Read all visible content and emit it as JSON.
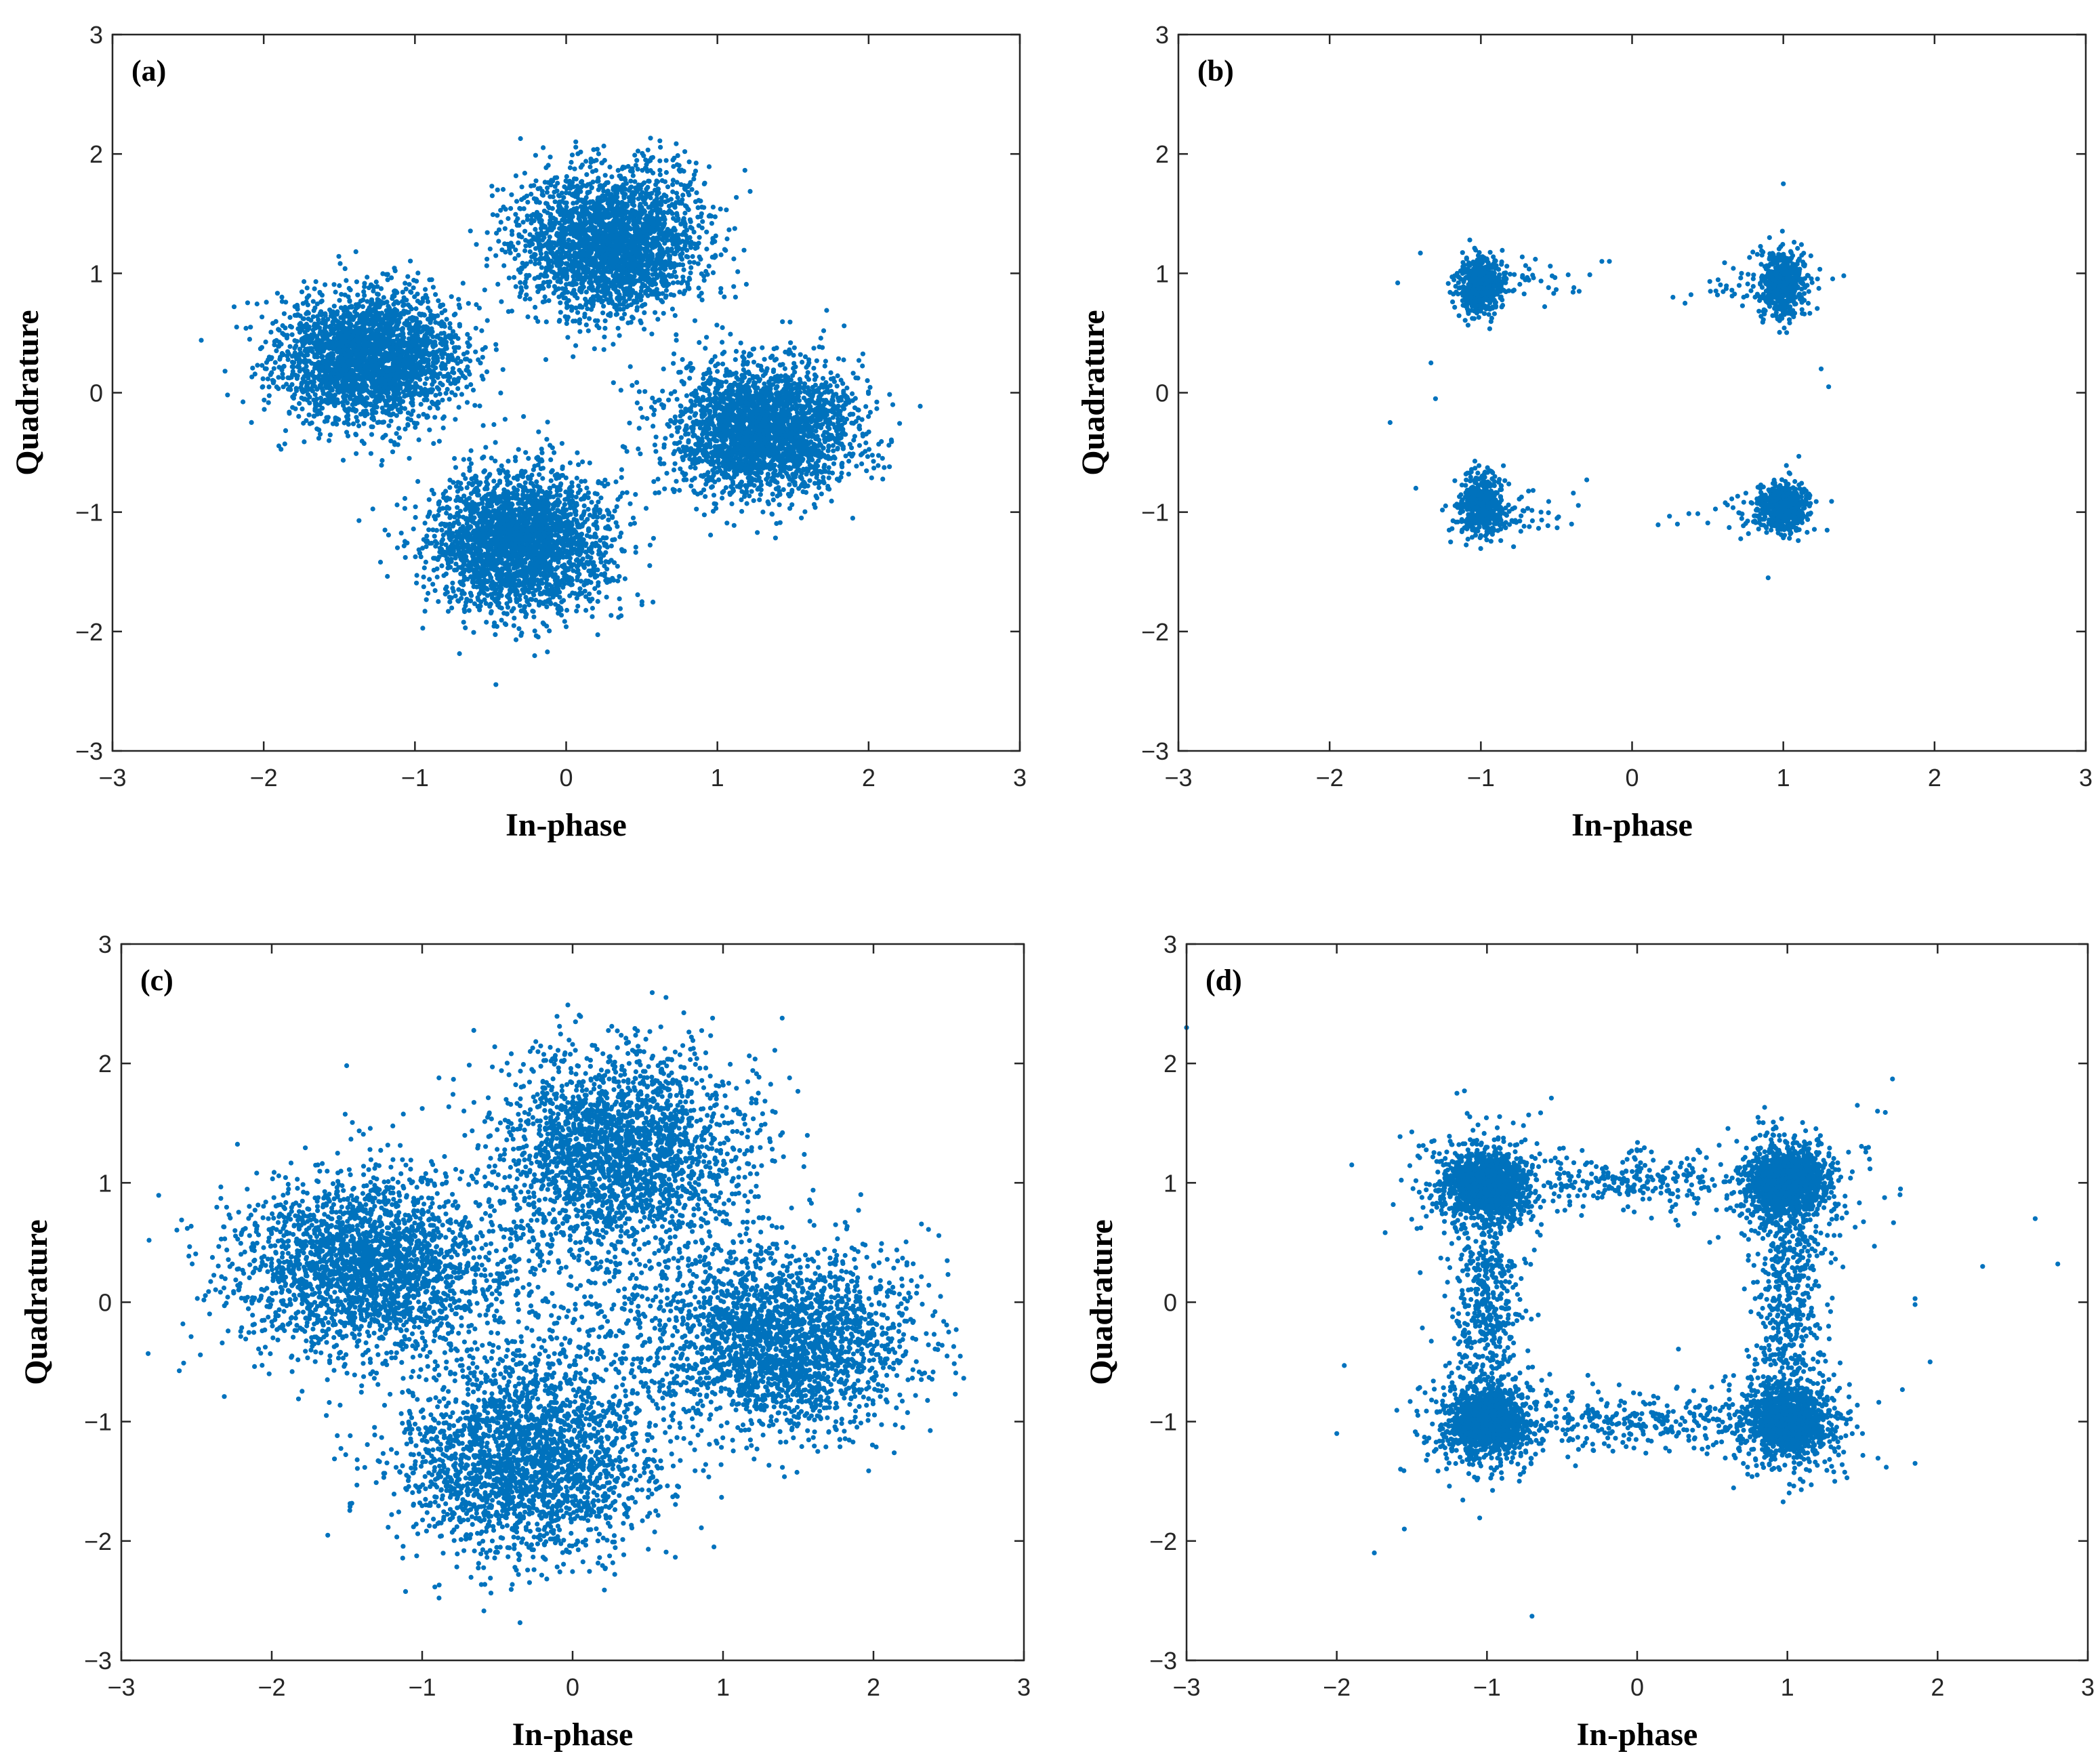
{
  "colors": {
    "points": "#0072BD",
    "axes": "#262626"
  },
  "chart_data": [
    {
      "type": "scatter",
      "panel_label": "(a)",
      "xlabel": "In-phase",
      "ylabel": "Quadrature",
      "xlim": [
        -3,
        3
      ],
      "ylim": [
        -3,
        3
      ],
      "xticks": [
        "−3",
        "−2",
        "−1",
        "0",
        "1",
        "2",
        "3"
      ],
      "yticks": [
        "−3",
        "−2",
        "−1",
        "0",
        "1",
        "2",
        "3"
      ],
      "clusters": [
        {
          "cx": -1.3,
          "cy": 0.3,
          "sx": 0.3,
          "sy": 0.27,
          "n": 2600
        },
        {
          "cx": 0.3,
          "cy": 1.25,
          "sx": 0.3,
          "sy": 0.3,
          "n": 2600
        },
        {
          "cx": 1.3,
          "cy": -0.3,
          "sx": 0.3,
          "sy": 0.27,
          "n": 2600
        },
        {
          "cx": -0.3,
          "cy": -1.25,
          "sx": 0.3,
          "sy": 0.3,
          "n": 2600
        }
      ],
      "outliers": []
    },
    {
      "type": "scatter",
      "panel_label": "(b)",
      "xlabel": "In-phase",
      "ylabel": "Quadrature",
      "xlim": [
        -3,
        3
      ],
      "ylim": [
        -3,
        3
      ],
      "xticks": [
        "−3",
        "−2",
        "−1",
        "0",
        "1",
        "2",
        "3"
      ],
      "yticks": [
        "−3",
        "−2",
        "−1",
        "0",
        "1",
        "2",
        "3"
      ],
      "clusters": [
        {
          "cx": -1.0,
          "cy": 0.9,
          "sx": 0.07,
          "sy": 0.12,
          "n": 500
        },
        {
          "cx": 1.0,
          "cy": 0.9,
          "sx": 0.07,
          "sy": 0.14,
          "n": 500
        },
        {
          "cx": -1.0,
          "cy": -0.95,
          "sx": 0.07,
          "sy": 0.13,
          "n": 500
        },
        {
          "cx": 1.0,
          "cy": -0.95,
          "sx": 0.08,
          "sy": 0.1,
          "n": 500
        },
        {
          "cx": -0.8,
          "cy": 0.95,
          "sx": 0.2,
          "sy": 0.1,
          "n": 60
        },
        {
          "cx": 0.8,
          "cy": 0.95,
          "sx": 0.2,
          "sy": 0.1,
          "n": 60
        },
        {
          "cx": -0.8,
          "cy": -1.0,
          "sx": 0.2,
          "sy": 0.1,
          "n": 60
        },
        {
          "cx": 0.8,
          "cy": -1.0,
          "sx": 0.2,
          "sy": 0.1,
          "n": 60
        }
      ],
      "outliers": [
        [
          -1.6,
          -0.25
        ],
        [
          -1.4,
          1.17
        ],
        [
          -1.3,
          -0.05
        ],
        [
          -1.33,
          0.25
        ],
        [
          -1.43,
          -0.8
        ],
        [
          -0.2,
          1.1
        ],
        [
          -0.15,
          1.1
        ],
        [
          -0.3,
          -0.73
        ],
        [
          0.27,
          0.8
        ],
        [
          0.3,
          -1.1
        ],
        [
          1.4,
          0.98
        ],
        [
          1.3,
          0.05
        ],
        [
          1.0,
          1.75
        ],
        [
          0.9,
          -1.55
        ],
        [
          -1.55,
          0.92
        ],
        [
          -0.35,
          0.85
        ],
        [
          0.35,
          0.75
        ],
        [
          -0.4,
          -1.1
        ],
        [
          1.25,
          0.2
        ],
        [
          -1.2,
          -1.25
        ]
      ]
    },
    {
      "type": "scatter",
      "panel_label": "(c)",
      "xlabel": "In-phase",
      "ylabel": "Quadrature",
      "xlim": [
        -3,
        3
      ],
      "ylim": [
        -3,
        3
      ],
      "xticks": [
        "−3",
        "−2",
        "−1",
        "0",
        "1",
        "2",
        "3"
      ],
      "yticks": [
        "−3",
        "−2",
        "−1",
        "0",
        "1",
        "2",
        "3"
      ],
      "clusters": [
        {
          "cx": -1.4,
          "cy": 0.3,
          "sx": 0.42,
          "sy": 0.38,
          "n": 2300
        },
        {
          "cx": 0.3,
          "cy": 1.3,
          "sx": 0.42,
          "sy": 0.42,
          "n": 2300
        },
        {
          "cx": 1.4,
          "cy": -0.3,
          "sx": 0.42,
          "sy": 0.38,
          "n": 2300
        },
        {
          "cx": -0.3,
          "cy": -1.3,
          "sx": 0.42,
          "sy": 0.42,
          "n": 2300
        },
        {
          "cx": 0.0,
          "cy": 0.0,
          "sx": 0.55,
          "sy": 0.55,
          "n": 500
        }
      ],
      "outliers": [
        [
          2.55,
          -0.23
        ],
        [
          2.5,
          -0.25
        ]
      ]
    },
    {
      "type": "scatter",
      "panel_label": "(d)",
      "xlabel": "In-phase",
      "ylabel": "Quadrature",
      "xlim": [
        -3,
        3
      ],
      "ylim": [
        -3,
        3
      ],
      "xticks": [
        "−3",
        "−2",
        "−1",
        "0",
        "1",
        "2",
        "3"
      ],
      "yticks": [
        "−3",
        "−2",
        "−1",
        "0",
        "1",
        "2",
        "3"
      ],
      "clusters": [
        {
          "cx": -1.0,
          "cy": 1.0,
          "sx": 0.12,
          "sy": 0.13,
          "n": 1200
        },
        {
          "cx": 1.0,
          "cy": 1.0,
          "sx": 0.12,
          "sy": 0.13,
          "n": 1200
        },
        {
          "cx": -1.0,
          "cy": -1.0,
          "sx": 0.12,
          "sy": 0.13,
          "n": 1200
        },
        {
          "cx": 1.0,
          "cy": -1.0,
          "sx": 0.12,
          "sy": 0.13,
          "n": 1200
        },
        {
          "cx": -1.0,
          "cy": 0.0,
          "sx": 0.12,
          "sy": 0.45,
          "n": 450
        },
        {
          "cx": 1.0,
          "cy": 0.0,
          "sx": 0.12,
          "sy": 0.45,
          "n": 450
        },
        {
          "cx": 0.0,
          "cy": 1.0,
          "sx": 0.45,
          "sy": 0.12,
          "n": 280
        },
        {
          "cx": 0.0,
          "cy": -1.0,
          "sx": 0.45,
          "sy": 0.12,
          "n": 280
        },
        {
          "cx": -1.0,
          "cy": 1.0,
          "sx": 0.25,
          "sy": 0.25,
          "n": 300
        },
        {
          "cx": 1.0,
          "cy": 1.0,
          "sx": 0.25,
          "sy": 0.25,
          "n": 300
        },
        {
          "cx": -1.0,
          "cy": -1.0,
          "sx": 0.25,
          "sy": 0.25,
          "n": 300
        },
        {
          "cx": 1.0,
          "cy": -1.0,
          "sx": 0.25,
          "sy": 0.25,
          "n": 300
        }
      ],
      "outliers": [
        [
          -3.0,
          2.3
        ],
        [
          -1.9,
          1.15
        ],
        [
          -1.95,
          -0.53
        ],
        [
          -1.75,
          -2.1
        ],
        [
          -1.55,
          -1.9
        ],
        [
          -0.7,
          -2.63
        ],
        [
          1.7,
          1.87
        ],
        [
          2.65,
          0.7
        ],
        [
          2.3,
          0.3
        ],
        [
          2.8,
          0.32
        ],
        [
          1.85,
          -1.35
        ],
        [
          1.95,
          -0.5
        ],
        [
          1.85,
          -0.02
        ],
        [
          1.75,
          0.9
        ],
        [
          -2.0,
          -1.1
        ],
        [
          1.5,
          -1.1
        ],
        [
          1.6,
          1.6
        ],
        [
          -1.2,
          1.75
        ],
        [
          -1.15,
          1.77
        ],
        [
          1.85,
          0.03
        ]
      ]
    }
  ]
}
